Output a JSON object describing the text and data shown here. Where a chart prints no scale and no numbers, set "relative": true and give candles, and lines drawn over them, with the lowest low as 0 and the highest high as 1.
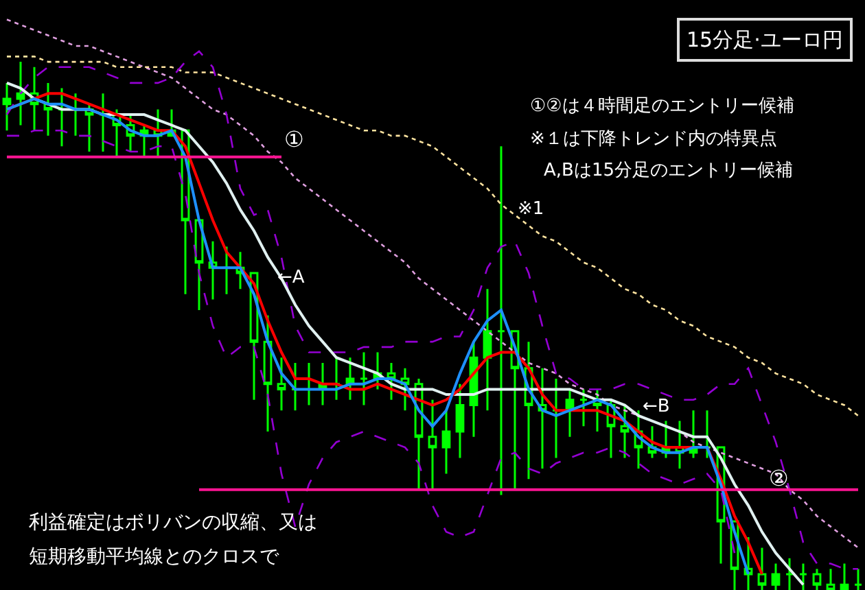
{
  "chart_data": {
    "type": "candlestick",
    "relative": true,
    "title": "15分足·ユーロ円",
    "tick_labels": false,
    "grid": false,
    "categories": [
      null,
      null,
      null,
      null,
      null,
      null,
      null,
      null,
      null,
      null,
      null,
      null,
      null,
      null,
      null,
      null,
      null,
      null,
      null,
      null,
      null,
      null,
      null,
      null,
      null,
      null,
      null,
      null,
      null,
      null,
      null,
      null,
      null,
      null,
      null,
      null,
      null,
      null,
      null,
      null,
      null,
      null,
      null,
      null,
      null,
      null,
      null,
      null,
      null,
      null,
      null,
      null,
      null,
      null,
      null,
      null,
      null,
      null,
      null,
      null,
      null,
      null,
      null
    ],
    "color": "#00ff00",
    "ohlc": [
      [
        0.92,
        0.96,
        0.87,
        0.93
      ],
      [
        0.93,
        1,
        0.88,
        0.94
      ],
      [
        0.94,
        0.99,
        0.87,
        0.92
      ],
      [
        0.92,
        0.96,
        0.86,
        0.91
      ],
      [
        0.91,
        0.95,
        0.84,
        0.91
      ],
      [
        0.91,
        0.94,
        0.86,
        0.91
      ],
      [
        0.91,
        0.92,
        0.83,
        0.9
      ],
      [
        0.9,
        0.94,
        0.83,
        0.9
      ],
      [
        0.9,
        0.91,
        0.82,
        0.88
      ],
      [
        0.88,
        0.9,
        0.83,
        0.86
      ],
      [
        0.86,
        0.88,
        0.82,
        0.87
      ],
      [
        0.87,
        0.91,
        0.82,
        0.86
      ],
      [
        0.86,
        0.91,
        0.86,
        0.87
      ],
      [
        0.87,
        0.87,
        0.56,
        0.7
      ],
      [
        0.7,
        0.7,
        0.53,
        0.62
      ],
      [
        0.62,
        0.66,
        0.55,
        0.61
      ],
      [
        0.61,
        0.65,
        0.56,
        0.61
      ],
      [
        0.61,
        0.64,
        0.57,
        0.6
      ],
      [
        0.6,
        0.6,
        0.36,
        0.47
      ],
      [
        0.47,
        0.52,
        0.3,
        0.39
      ],
      [
        0.39,
        0.44,
        0.34,
        0.38
      ],
      [
        0.38,
        0.43,
        0.34,
        0.38
      ],
      [
        0.38,
        0.43,
        0.35,
        0.38
      ],
      [
        0.38,
        0.43,
        0.35,
        0.39
      ],
      [
        0.39,
        0.44,
        0.36,
        0.39
      ],
      [
        0.39,
        0.44,
        0.36,
        0.4
      ],
      [
        0.4,
        0.45,
        0.35,
        0.4
      ],
      [
        0.4,
        0.45,
        0.38,
        0.41
      ],
      [
        0.41,
        0.43,
        0.36,
        0.4
      ],
      [
        0.4,
        0.42,
        0.34,
        0.39
      ],
      [
        0.39,
        0.4,
        0.19,
        0.29
      ],
      [
        0.29,
        0.36,
        0.19,
        0.27
      ],
      [
        0.27,
        0.34,
        0.22,
        0.3
      ],
      [
        0.3,
        0.39,
        0.25,
        0.35
      ],
      [
        0.35,
        0.47,
        0.29,
        0.44
      ],
      [
        0.44,
        0.57,
        0.34,
        0.49
      ],
      [
        0.49,
        0.84,
        0.18,
        0.49
      ],
      [
        0.49,
        0.49,
        0.19,
        0.42
      ],
      [
        0.42,
        0.47,
        0.21,
        0.35
      ],
      [
        0.35,
        0.42,
        0.23,
        0.34
      ],
      [
        0.34,
        0.4,
        0.25,
        0.34
      ],
      [
        0.34,
        0.38,
        0.29,
        0.36
      ],
      [
        0.36,
        0.38,
        0.31,
        0.36
      ],
      [
        0.36,
        0.38,
        0.3,
        0.35
      ],
      [
        0.35,
        0.36,
        0.25,
        0.31
      ],
      [
        0.31,
        0.35,
        0.25,
        0.3
      ],
      [
        0.3,
        0.34,
        0.23,
        0.27
      ],
      [
        0.27,
        0.31,
        0.25,
        0.26
      ],
      [
        0.26,
        0.32,
        0.25,
        0.27
      ],
      [
        0.27,
        0.32,
        0.23,
        0.26
      ],
      [
        0.26,
        0.34,
        0.25,
        0.27
      ],
      [
        0.27,
        0.34,
        0.25,
        0.27
      ],
      [
        0.27,
        0.27,
        0.05,
        0.13
      ],
      [
        0.13,
        0.13,
        0,
        0.04
      ],
      [
        0.04,
        0.1,
        0,
        0.03
      ],
      [
        0.03,
        0.08,
        0,
        0.01
      ],
      [
        0.01,
        0.05,
        0,
        0.03
      ],
      [
        0.03,
        0.06,
        0,
        0.03
      ],
      [
        0.03,
        0.05,
        0,
        0.03
      ],
      [
        0.03,
        0.04,
        0,
        0.01
      ],
      [
        0.01,
        0.04,
        0,
        0
      ],
      [
        0,
        0.05,
        0,
        0.01
      ],
      [
        0.01,
        0.04,
        0,
        0.01
      ]
    ],
    "series": [
      {
        "type": "line",
        "color": "#e0a0e0",
        "line_style": "dotted",
        "values": [
          1.08,
          1.07,
          1.06,
          1.05,
          1.04,
          1.03,
          1.03,
          1.02,
          1.01,
          1.0,
          0.99,
          0.98,
          0.97,
          0.95,
          0.93,
          0.91,
          0.9,
          0.88,
          0.86,
          0.83,
          0.81,
          0.78,
          0.76,
          0.74,
          0.72,
          0.7,
          0.68,
          0.66,
          0.64,
          0.62,
          0.59,
          0.57,
          0.55,
          0.53,
          0.51,
          0.49,
          0.47,
          0.45,
          0.43,
          0.42,
          0.41,
          0.39,
          0.38,
          0.37,
          0.35,
          0.34,
          0.33,
          0.32,
          0.31,
          0.3,
          0.28,
          0.27,
          0.26,
          0.25,
          0.24,
          0.23,
          0.22,
          0.19,
          0.17,
          0.14,
          0.12,
          0.1,
          0.08
        ]
      },
      {
        "type": "line",
        "color": "#ffe4a0",
        "line_style": "dotted",
        "values": [
          1.01,
          1.01,
          1.01,
          1.0,
          1.0,
          1.0,
          1.0,
          1.0,
          0.99,
          0.99,
          0.99,
          0.99,
          0.99,
          0.98,
          0.98,
          0.98,
          0.97,
          0.96,
          0.95,
          0.94,
          0.93,
          0.92,
          0.91,
          0.9,
          0.89,
          0.88,
          0.87,
          0.87,
          0.86,
          0.86,
          0.85,
          0.84,
          0.82,
          0.8,
          0.78,
          0.76,
          0.73,
          0.71,
          0.69,
          0.67,
          0.66,
          0.64,
          0.62,
          0.61,
          0.59,
          0.57,
          0.56,
          0.54,
          0.53,
          0.51,
          0.5,
          0.48,
          0.47,
          0.46,
          0.44,
          0.43,
          0.41,
          0.4,
          0.39,
          0.37,
          0.36,
          0.35,
          0.33
        ]
      },
      {
        "type": "line",
        "color": "#9400d3",
        "line_style": "dashed",
        "values": [
          0.9,
          0.94,
          0.97,
          0.99,
          0.99,
          0.99,
          0.99,
          0.98,
          0.97,
          0.96,
          0.96,
          0.96,
          0.97,
          1.0,
          1.02,
          0.99,
          0.9,
          0.76,
          0.71,
          0.72,
          0.63,
          0.5,
          0.45,
          0.45,
          0.45,
          0.45,
          0.46,
          0.46,
          0.46,
          0.47,
          0.47,
          0.47,
          0.48,
          0.48,
          0.53,
          0.61,
          0.65,
          0.66,
          0.6,
          0.5,
          0.41,
          0.4,
          0.38,
          0.38,
          0.38,
          0.39,
          0.39,
          0.38,
          0.37,
          0.36,
          0.36,
          0.37,
          0.39,
          0.39,
          0.42,
          0.35,
          0.28,
          0.19,
          0.09,
          0.05,
          0.05,
          0.04,
          0.04
        ]
      },
      {
        "type": "line",
        "color": "#9400d3",
        "line_style": "dashed",
        "values": [
          0.86,
          0.86,
          0.87,
          0.87,
          0.87,
          0.86,
          0.86,
          0.85,
          0.84,
          0.83,
          0.83,
          0.84,
          0.84,
          0.75,
          0.6,
          0.5,
          0.44,
          0.46,
          0.46,
          0.37,
          0.22,
          0.12,
          0.2,
          0.25,
          0.28,
          0.29,
          0.3,
          0.29,
          0.28,
          0.27,
          0.24,
          0.16,
          0.11,
          0.1,
          0.11,
          0.18,
          0.25,
          0.26,
          0.23,
          0.22,
          0.24,
          0.25,
          0.26,
          0.26,
          0.27,
          0.26,
          0.24,
          0.22,
          0.21,
          0.2,
          0.21,
          0.22,
          0.19,
          0.07,
          null,
          null,
          null,
          null,
          null,
          null,
          null,
          null,
          null
        ]
      },
      {
        "type": "line",
        "color": "#e0f0f0",
        "line_style": "solid",
        "values": [
          0.96,
          0.95,
          0.93,
          0.92,
          0.91,
          0.91,
          0.91,
          0.9,
          0.9,
          0.9,
          0.9,
          0.89,
          0.88,
          0.87,
          0.84,
          0.81,
          0.77,
          0.72,
          0.68,
          0.63,
          0.59,
          0.54,
          0.5,
          0.47,
          0.44,
          0.43,
          0.42,
          0.41,
          0.39,
          0.38,
          0.38,
          0.38,
          0.37,
          0.37,
          0.37,
          0.38,
          0.38,
          0.38,
          0.38,
          0.38,
          0.38,
          0.38,
          0.37,
          0.36,
          0.36,
          0.35,
          0.33,
          0.32,
          0.31,
          0.3,
          0.29,
          0.29,
          0.25,
          0.2,
          0.16,
          0.11,
          0.07,
          0.04,
          0.01,
          null,
          null,
          null,
          null
        ]
      },
      {
        "type": "line",
        "color": "#ff0000",
        "line_style": "solid",
        "values": [
          0.91,
          0.92,
          0.93,
          0.94,
          0.94,
          0.93,
          0.92,
          0.91,
          0.9,
          0.89,
          0.88,
          0.87,
          0.87,
          0.84,
          0.77,
          0.7,
          0.64,
          0.61,
          0.58,
          0.51,
          0.45,
          0.4,
          0.4,
          0.39,
          0.39,
          0.38,
          0.38,
          0.39,
          0.38,
          0.37,
          0.36,
          0.35,
          0.36,
          0.38,
          0.41,
          0.44,
          0.45,
          0.45,
          0.42,
          0.37,
          0.34,
          0.34,
          0.34,
          0.34,
          0.33,
          0.32,
          0.3,
          0.28,
          0.27,
          0.27,
          0.27,
          0.27,
          0.21,
          0.14,
          0.09,
          0.03,
          null,
          null,
          null,
          null,
          null,
          null,
          null
        ]
      },
      {
        "type": "line",
        "color": "#1e90ff",
        "line_style": "solid",
        "values": [
          0.91,
          0.92,
          0.93,
          0.92,
          0.92,
          0.91,
          0.91,
          0.9,
          0.89,
          0.87,
          0.86,
          0.86,
          0.87,
          0.82,
          0.7,
          0.61,
          0.61,
          0.61,
          0.56,
          0.47,
          0.41,
          0.38,
          0.38,
          0.38,
          0.38,
          0.39,
          0.39,
          0.4,
          0.4,
          0.39,
          0.34,
          0.31,
          0.34,
          0.41,
          0.47,
          0.51,
          0.53,
          0.46,
          0.38,
          0.34,
          0.33,
          0.34,
          0.35,
          0.36,
          0.35,
          0.32,
          0.29,
          0.27,
          0.26,
          0.26,
          0.27,
          0.27,
          0.2,
          0.11,
          0.03,
          null,
          null,
          null,
          null,
          null,
          null,
          null,
          null
        ]
      },
      {
        "type": "line",
        "color": "#ff1493",
        "line_style": "solid",
        "values": [
          0.82,
          0.82,
          0.82,
          0.82,
          0.82,
          0.82,
          0.82,
          0.82,
          0.82,
          0.82,
          0.82,
          0.82,
          0.82,
          0.82,
          0.82,
          0.82,
          0.82,
          0.82,
          0.82,
          0.82,
          0.82,
          null,
          null,
          null,
          null,
          null,
          null,
          null,
          null,
          null,
          null,
          null,
          null,
          null,
          null,
          null,
          null,
          null,
          null,
          null,
          null,
          null,
          null,
          null,
          null,
          null,
          null,
          null,
          null,
          null,
          null,
          null,
          null,
          null,
          null,
          null,
          null,
          null,
          null,
          null,
          null,
          null,
          null
        ]
      },
      {
        "type": "line",
        "color": "#ff1493",
        "line_style": "solid",
        "values": [
          null,
          null,
          null,
          null,
          null,
          null,
          null,
          null,
          null,
          null,
          null,
          null,
          null,
          null,
          0.19,
          0.19,
          0.19,
          0.19,
          0.19,
          0.19,
          0.19,
          0.19,
          0.19,
          0.19,
          0.19,
          0.19,
          0.19,
          0.19,
          0.19,
          0.19,
          0.19,
          0.19,
          0.19,
          0.19,
          0.19,
          0.19,
          0.19,
          0.19,
          0.19,
          0.19,
          0.19,
          0.19,
          0.19,
          0.19,
          0.19,
          0.19,
          0.19,
          0.19,
          0.19,
          0.19,
          0.19,
          0.19,
          0.19,
          0.19,
          0.19,
          0.19,
          0.19,
          0.19,
          0.19,
          0.19,
          0.19,
          0.19,
          0.19
        ]
      }
    ],
    "annotations": [
      "①",
      "※1",
      "←A",
      "←B",
      "②",
      "①②は４時間足のエントリー候補",
      "※１は下降トレンド内の特異点",
      "A,Bは15分足のエントリー候補",
      "利益確定はボリバンの収縮、又は",
      "短期移動平均線とのクロスで"
    ]
  }
}
